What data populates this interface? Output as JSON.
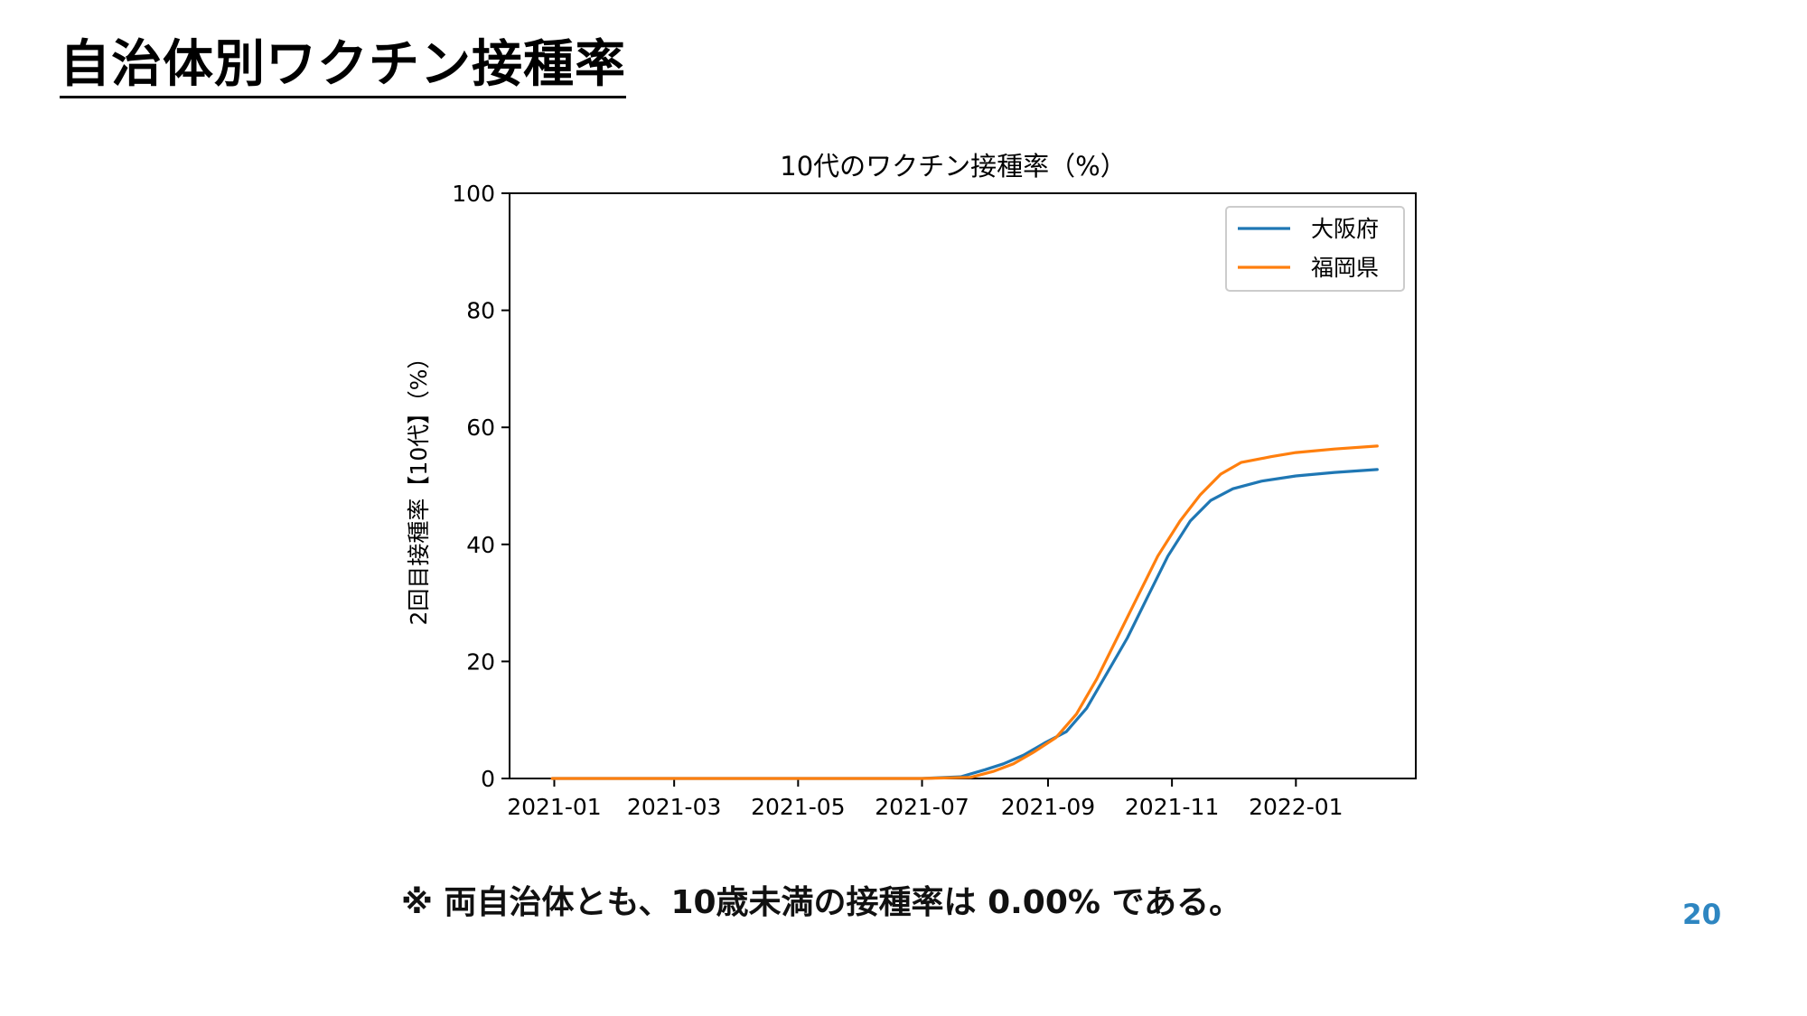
{
  "slide": {
    "title": "自治体別ワクチン接種率",
    "note": "※ 両自治体とも、10歳未満の接種率は 0.00% である。",
    "page_number": "20",
    "page_number_color": "#2e86c1"
  },
  "chart_data": {
    "type": "line",
    "title": "10代のワクチン接種率（%）",
    "ylabel": "2回目接種率【10代】（%）",
    "xlabel": "",
    "x_type": "date",
    "xlim": [
      "2020-12-10",
      "2022-03-01"
    ],
    "ylim": [
      0,
      100
    ],
    "yticks": [
      0,
      20,
      40,
      60,
      80,
      100
    ],
    "xticks": [
      "2021-01-01",
      "2021-03-01",
      "2021-05-01",
      "2021-07-01",
      "2021-09-01",
      "2021-11-01",
      "2022-01-01"
    ],
    "xtick_labels": [
      "2021-01",
      "2021-03",
      "2021-05",
      "2021-07",
      "2021-09",
      "2021-11",
      "2022-01"
    ],
    "grid": false,
    "legend_position": "top-right",
    "series": [
      {
        "name": "大阪府",
        "color": "#1f77b4",
        "points": [
          [
            "2020-12-31",
            0
          ],
          [
            "2021-07-01",
            0
          ],
          [
            "2021-07-20",
            0.3
          ],
          [
            "2021-08-01",
            1.5
          ],
          [
            "2021-08-10",
            2.5
          ],
          [
            "2021-08-20",
            4
          ],
          [
            "2021-08-30",
            6
          ],
          [
            "2021-09-10",
            8
          ],
          [
            "2021-09-20",
            12
          ],
          [
            "2021-09-30",
            18
          ],
          [
            "2021-10-10",
            24
          ],
          [
            "2021-10-20",
            31
          ],
          [
            "2021-10-30",
            38
          ],
          [
            "2021-11-10",
            44
          ],
          [
            "2021-11-20",
            47.5
          ],
          [
            "2021-12-01",
            49.5
          ],
          [
            "2021-12-15",
            50.8
          ],
          [
            "2022-01-01",
            51.7
          ],
          [
            "2022-01-20",
            52.3
          ],
          [
            "2022-02-10",
            52.8
          ]
        ]
      },
      {
        "name": "福岡県",
        "color": "#ff7f0e",
        "points": [
          [
            "2020-12-31",
            0
          ],
          [
            "2021-07-01",
            0
          ],
          [
            "2021-07-25",
            0.2
          ],
          [
            "2021-08-05",
            1.2
          ],
          [
            "2021-08-15",
            2.5
          ],
          [
            "2021-08-25",
            4.5
          ],
          [
            "2021-09-05",
            7
          ],
          [
            "2021-09-15",
            11
          ],
          [
            "2021-09-25",
            17
          ],
          [
            "2021-10-05",
            24
          ],
          [
            "2021-10-15",
            31
          ],
          [
            "2021-10-25",
            38
          ],
          [
            "2021-11-05",
            44
          ],
          [
            "2021-11-15",
            48.5
          ],
          [
            "2021-11-25",
            52
          ],
          [
            "2021-12-05",
            54
          ],
          [
            "2021-12-20",
            55
          ],
          [
            "2022-01-01",
            55.7
          ],
          [
            "2022-01-20",
            56.3
          ],
          [
            "2022-02-10",
            56.8
          ]
        ]
      }
    ]
  }
}
